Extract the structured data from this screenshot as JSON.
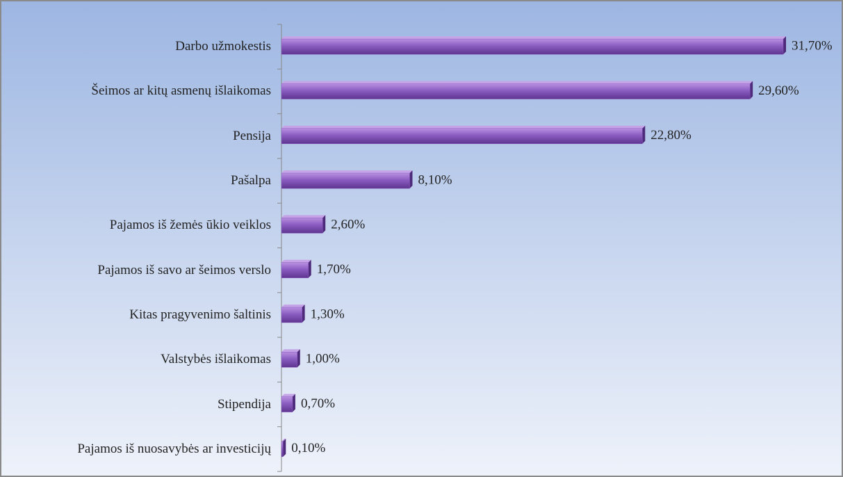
{
  "chart_data": {
    "type": "bar",
    "orientation": "horizontal",
    "categories": [
      "Darbo užmokestis",
      "Šeimos ar kitų asmenų išlaikomas",
      "Pensija",
      "Pašalpa",
      "Pajamos iš žemės ūkio veiklos",
      "Pajamos iš savo ar šeimos verslo",
      "Kitas pragyvenimo šaltinis",
      "Valstybės išlaikomas",
      "Stipendija",
      "Pajamos iš nuosavybės ar investicijų"
    ],
    "values": [
      31.7,
      29.6,
      22.8,
      8.1,
      2.6,
      1.7,
      1.3,
      1.0,
      0.7,
      0.1
    ],
    "value_labels": [
      "31,70%",
      "29,60%",
      "22,80%",
      "8,10%",
      "2,60%",
      "1,70%",
      "1,30%",
      "1,00%",
      "0,70%",
      "0,10%"
    ],
    "color": "#8a5cc0"
  }
}
